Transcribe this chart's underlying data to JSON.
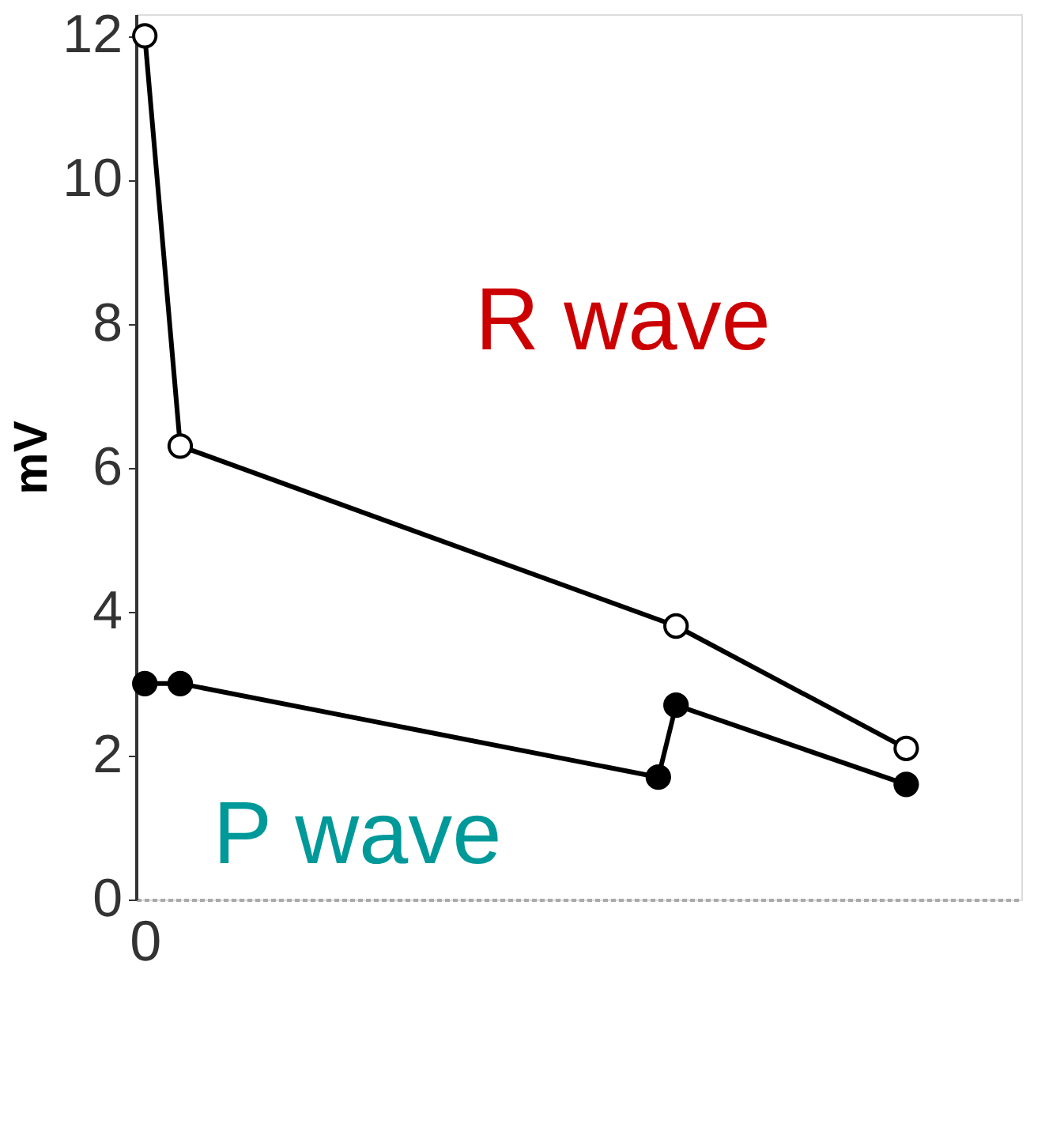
{
  "chart_data": {
    "type": "line",
    "ylabel": "mV",
    "ylim": [
      0,
      12.3
    ],
    "yticks": [
      0,
      2,
      4,
      6,
      8,
      10,
      12
    ],
    "marker": "circle",
    "grid": false,
    "categories": [
      "0",
      null,
      null,
      null,
      null,
      null,
      null,
      null,
      null,
      null,
      null,
      null,
      null,
      null,
      null,
      null,
      null,
      null,
      null,
      null,
      null,
      null,
      null,
      null,
      null,
      null,
      null,
      null,
      null,
      null,
      null,
      null,
      null,
      null,
      null,
      null,
      null,
      null,
      null,
      null,
      null,
      null,
      null,
      null,
      null,
      null,
      null,
      null,
      null,
      null
    ],
    "series": [
      {
        "name": "R wave",
        "values": [
          12,
          null,
          6.3,
          null,
          null,
          null,
          null,
          null,
          null,
          null,
          null,
          null,
          null,
          null,
          null,
          null,
          null,
          null,
          null,
          null,
          null,
          null,
          null,
          null,
          null,
          null,
          null,
          null,
          null,
          null,
          3.8,
          null,
          null,
          null,
          null,
          null,
          null,
          null,
          null,
          null,
          null,
          null,
          null,
          2.1,
          null,
          null,
          null,
          null,
          null,
          null
        ]
      },
      {
        "name": "P wave",
        "values": [
          3.0,
          null,
          3.0,
          null,
          null,
          null,
          null,
          null,
          null,
          null,
          null,
          null,
          null,
          null,
          null,
          null,
          null,
          null,
          null,
          null,
          null,
          null,
          null,
          null,
          null,
          null,
          null,
          null,
          null,
          1.7,
          2.7,
          null,
          null,
          null,
          null,
          null,
          null,
          null,
          null,
          null,
          null,
          null,
          null,
          1.6,
          null,
          null,
          null,
          null,
          null,
          null
        ]
      }
    ]
  }
}
